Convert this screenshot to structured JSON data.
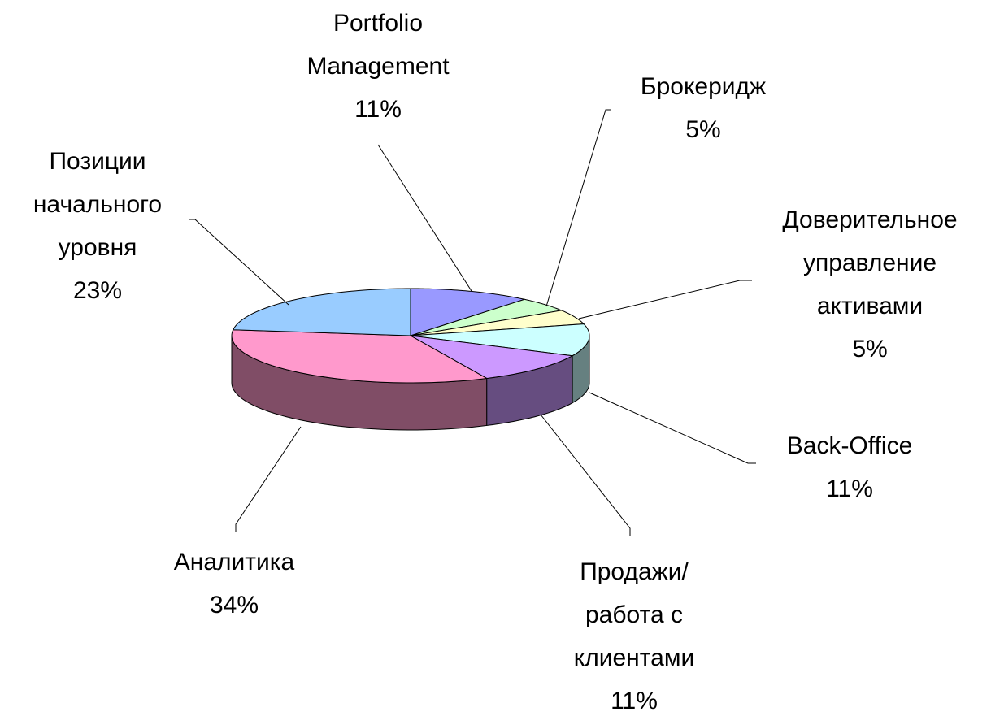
{
  "chart_data": {
    "type": "pie3d",
    "categories": [
      "Portfolio\nManagement",
      "Брокеридж",
      "Доверительное\nуправление\nактивами",
      "Back-Office",
      "Продажи/\nработа с\nклиентами",
      "Аналитика",
      "Позиции\nначального\nуровня"
    ],
    "values": [
      11,
      5,
      5,
      11,
      11,
      34,
      23
    ],
    "value_labels": [
      "11%",
      "5%",
      "5%",
      "11%",
      "11%",
      "34%",
      "23%"
    ],
    "colors": [
      "#9999ff",
      "#ccffcc",
      "#ffffcc",
      "#ccffff",
      "#cc99ff",
      "#ff99cc",
      "#99ccff"
    ]
  }
}
